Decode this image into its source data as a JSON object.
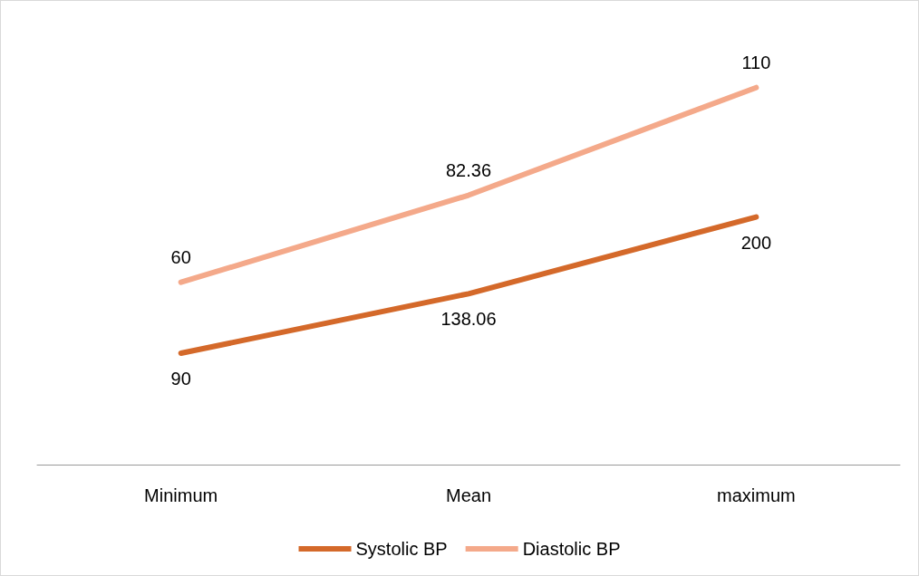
{
  "chart_data": {
    "type": "line",
    "categories": [
      "Minimum",
      "Mean",
      "maximum"
    ],
    "series": [
      {
        "name": "Systolic BP",
        "color": "#d4692a",
        "values": [
          90,
          138.06,
          200
        ]
      },
      {
        "name": "Diastolic BP",
        "color": "#f4a98a",
        "values": [
          60,
          82.36,
          110
        ],
        "axis": "y2"
      }
    ],
    "data_labels": true,
    "legend": "bottom",
    "grid": false,
    "marker": "none",
    "line_style": "solid"
  }
}
